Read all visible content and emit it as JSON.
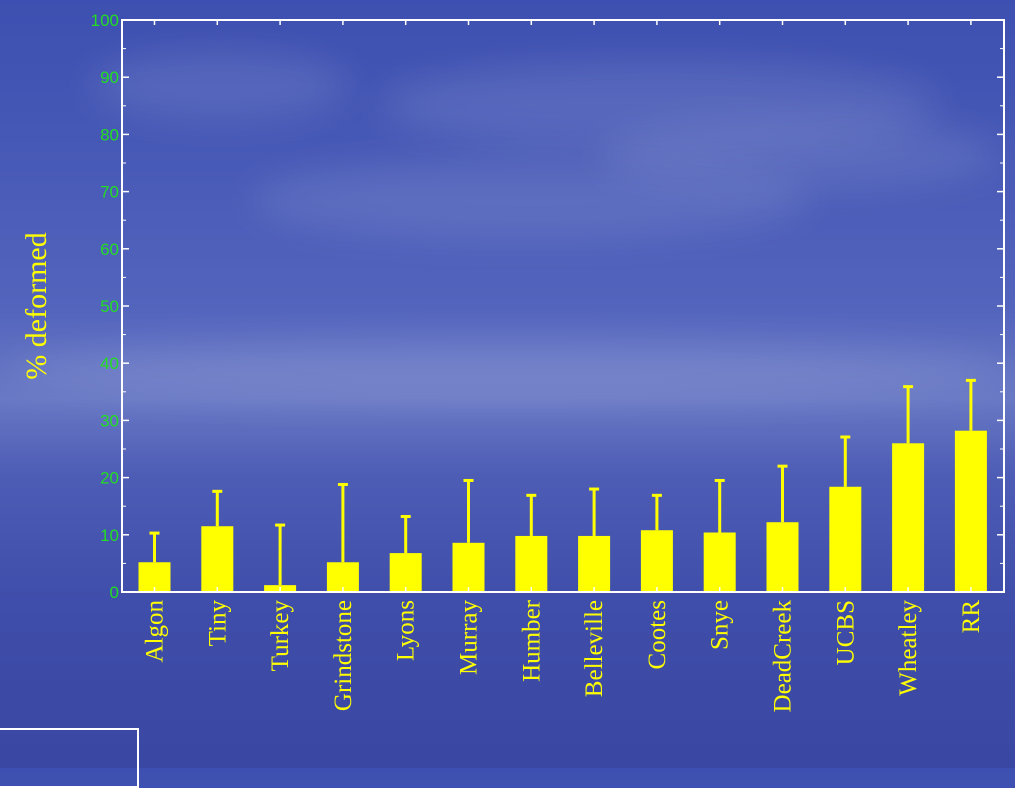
{
  "chart_data": {
    "type": "bar",
    "title": "",
    "xlabel": "",
    "ylabel": "% deformed",
    "ylim": [
      0,
      100
    ],
    "yticks": [
      "0",
      "10",
      "20",
      "30",
      "40",
      "50",
      "60",
      "70",
      "80",
      "90",
      "100"
    ],
    "categories": [
      "Algon",
      "Tiny",
      "Turkey",
      "Grindstone",
      "Lyons",
      "Murray",
      "Humber",
      "Belleville",
      "Cootes",
      "Snye",
      "DeadCreek",
      "UCBS",
      "Wheatley",
      "RR"
    ],
    "values": [
      5.2,
      11.5,
      1.2,
      5.2,
      6.8,
      8.6,
      9.8,
      9.8,
      10.8,
      10.4,
      12.2,
      18.4,
      26.0,
      28.2
    ],
    "error_upper": [
      10.3,
      17.6,
      11.7,
      18.8,
      13.2,
      19.5,
      16.9,
      18.0,
      16.9,
      19.5,
      22.0,
      27.1,
      35.9,
      37.0
    ],
    "bar_color": "#ffff00",
    "axis_color": "#ffffff",
    "ytick_color": "#22dd22",
    "label_color": "#ffff00",
    "grid": false
  }
}
